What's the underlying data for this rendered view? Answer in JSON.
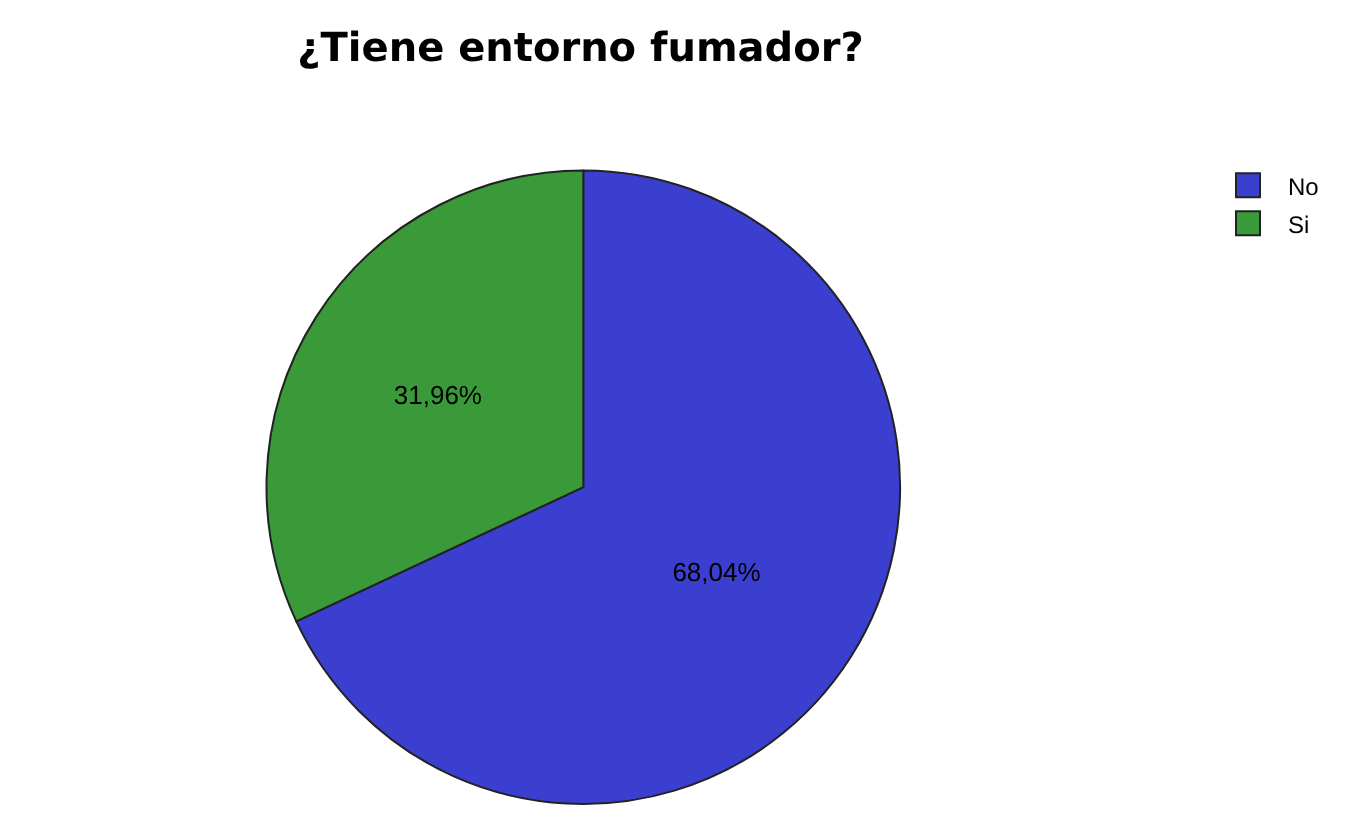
{
  "chart_data": {
    "type": "pie",
    "title": "¿Tiene entorno fumador?",
    "categories": [
      "No",
      "Si"
    ],
    "values": [
      68.04,
      31.96
    ],
    "value_labels": [
      "68,04%",
      "31,96%"
    ],
    "colors": [
      "#3b3fd0",
      "#3a9a3a"
    ],
    "legend": "top right"
  }
}
